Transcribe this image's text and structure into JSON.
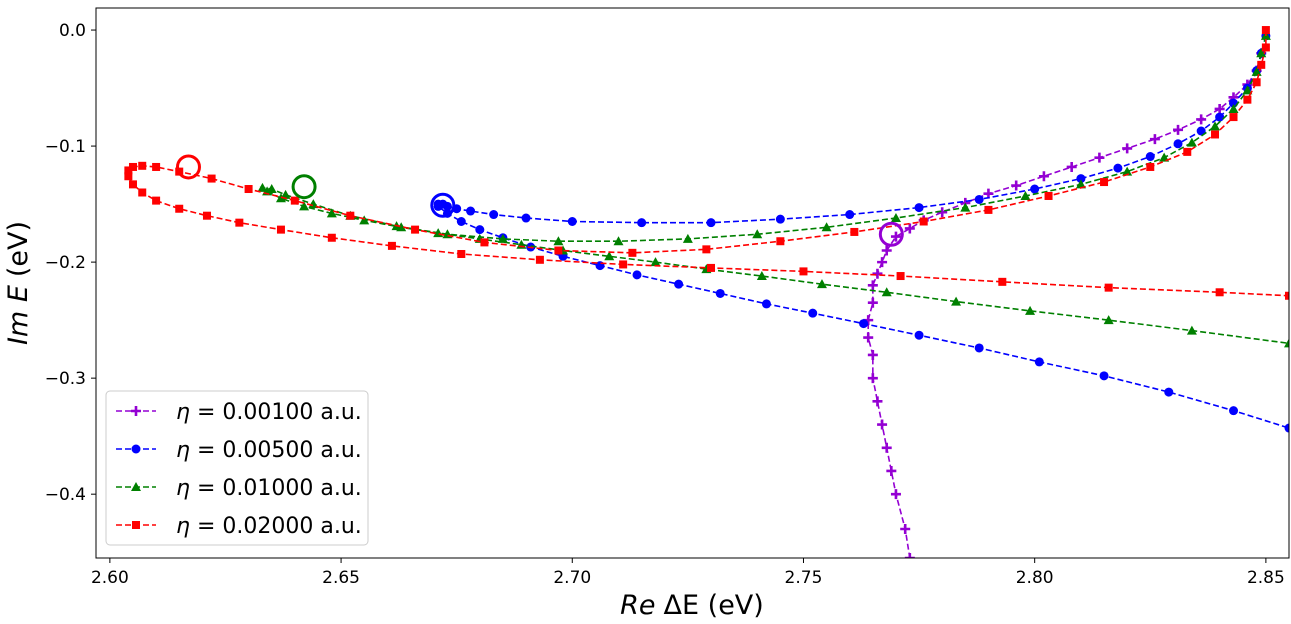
{
  "chart_data": {
    "type": "line",
    "xlabel": {
      "italic": "Re",
      "rest": "ΔE (eV)"
    },
    "ylabel": {
      "italic": "Im E",
      "rest": "(eV)"
    },
    "xlim": [
      2.597,
      2.855
    ],
    "ylim": [
      -0.455,
      0.019
    ],
    "xticks": [
      2.6,
      2.65,
      2.7,
      2.75,
      2.8,
      2.85
    ],
    "xtick_labels": [
      "2.60",
      "2.65",
      "2.70",
      "2.75",
      "2.80",
      "2.85"
    ],
    "yticks": [
      0.0,
      -0.1,
      -0.2,
      -0.3,
      -0.4
    ],
    "ytick_labels": [
      "0.0",
      "−0.1",
      "−0.2",
      "−0.3",
      "−0.4"
    ],
    "grid": false,
    "legend_position": "bottom-left",
    "series": [
      {
        "name": "η = 0.00100 a.u.",
        "label_prefix": "η",
        "label_value": " = 0.00100 a.u.",
        "color": "#9400d3",
        "marker": "plus",
        "x": [
          2.849,
          2.848,
          2.846,
          2.843,
          2.84,
          2.836,
          2.831,
          2.826,
          2.82,
          2.814,
          2.808,
          2.802,
          2.796,
          2.79,
          2.785,
          2.78,
          2.776,
          2.773,
          2.77,
          2.768,
          2.767,
          2.766,
          2.765,
          2.765,
          2.764,
          2.764,
          2.765,
          2.765,
          2.766,
          2.767,
          2.768,
          2.769,
          2.77,
          2.772,
          2.773
        ],
        "y": [
          -0.02,
          -0.035,
          -0.047,
          -0.058,
          -0.068,
          -0.077,
          -0.086,
          -0.094,
          -0.102,
          -0.11,
          -0.118,
          -0.126,
          -0.134,
          -0.141,
          -0.149,
          -0.157,
          -0.164,
          -0.171,
          -0.178,
          -0.19,
          -0.2,
          -0.21,
          -0.22,
          -0.235,
          -0.25,
          -0.265,
          -0.28,
          -0.3,
          -0.32,
          -0.34,
          -0.36,
          -0.38,
          -0.4,
          -0.43,
          -0.455
        ]
      },
      {
        "name": "η = 0.00500 a.u.",
        "label_prefix": "η",
        "label_value": " = 0.00500 a.u.",
        "color": "#0000ff",
        "marker": "circle",
        "x": [
          2.85,
          2.849,
          2.848,
          2.846,
          2.843,
          2.84,
          2.836,
          2.831,
          2.825,
          2.818,
          2.81,
          2.8,
          2.788,
          2.775,
          2.76,
          2.745,
          2.73,
          2.715,
          2.7,
          2.69,
          2.683,
          2.678,
          2.675,
          2.673,
          2.672,
          2.671,
          2.671,
          2.673,
          2.676,
          2.68,
          2.685,
          2.691,
          2.698,
          2.706,
          2.714,
          2.723,
          2.732,
          2.742,
          2.752,
          2.763,
          2.775,
          2.788,
          2.801,
          2.815,
          2.829,
          2.843,
          2.855
        ],
        "y": [
          -0.005,
          -0.02,
          -0.035,
          -0.05,
          -0.063,
          -0.075,
          -0.087,
          -0.098,
          -0.109,
          -0.119,
          -0.128,
          -0.137,
          -0.146,
          -0.153,
          -0.159,
          -0.163,
          -0.166,
          -0.166,
          -0.165,
          -0.162,
          -0.159,
          -0.156,
          -0.154,
          -0.152,
          -0.15,
          -0.15,
          -0.152,
          -0.158,
          -0.165,
          -0.172,
          -0.179,
          -0.187,
          -0.195,
          -0.203,
          -0.211,
          -0.219,
          -0.227,
          -0.236,
          -0.244,
          -0.253,
          -0.263,
          -0.274,
          -0.286,
          -0.298,
          -0.312,
          -0.328,
          -0.343
        ]
      },
      {
        "name": "η = 0.01000 a.u.",
        "label_prefix": "η",
        "label_value": " = 0.01000 a.u.",
        "color": "#008000",
        "marker": "triangle",
        "x": [
          2.85,
          2.849,
          2.848,
          2.846,
          2.843,
          2.839,
          2.834,
          2.828,
          2.82,
          2.81,
          2.798,
          2.785,
          2.77,
          2.755,
          2.74,
          2.725,
          2.71,
          2.697,
          2.685,
          2.673,
          2.662,
          2.652,
          2.644,
          2.638,
          2.635,
          2.633,
          2.634,
          2.637,
          2.642,
          2.648,
          2.655,
          2.663,
          2.671,
          2.68,
          2.689,
          2.698,
          2.708,
          2.718,
          2.729,
          2.741,
          2.754,
          2.768,
          2.783,
          2.799,
          2.816,
          2.834,
          2.855
        ],
        "y": [
          -0.005,
          -0.02,
          -0.036,
          -0.052,
          -0.068,
          -0.083,
          -0.097,
          -0.11,
          -0.122,
          -0.133,
          -0.143,
          -0.153,
          -0.162,
          -0.17,
          -0.176,
          -0.18,
          -0.182,
          -0.182,
          -0.18,
          -0.176,
          -0.169,
          -0.16,
          -0.15,
          -0.142,
          -0.137,
          -0.136,
          -0.139,
          -0.145,
          -0.152,
          -0.158,
          -0.164,
          -0.17,
          -0.175,
          -0.18,
          -0.185,
          -0.19,
          -0.195,
          -0.2,
          -0.206,
          -0.212,
          -0.219,
          -0.226,
          -0.234,
          -0.242,
          -0.25,
          -0.259,
          -0.27
        ]
      },
      {
        "name": "η = 0.02000 a.u.",
        "label_prefix": "η",
        "label_value": " = 0.02000 a.u.",
        "color": "#ff0000",
        "marker": "square",
        "x": [
          2.85,
          2.85,
          2.849,
          2.848,
          2.846,
          2.843,
          2.839,
          2.833,
          2.825,
          2.815,
          2.803,
          2.79,
          2.776,
          2.761,
          2.745,
          2.729,
          2.713,
          2.697,
          2.681,
          2.666,
          2.652,
          2.64,
          2.63,
          2.622,
          2.615,
          2.61,
          2.607,
          2.605,
          2.604,
          2.604,
          2.605,
          2.607,
          2.61,
          2.615,
          2.621,
          2.628,
          2.637,
          2.648,
          2.661,
          2.676,
          2.693,
          2.711,
          2.73,
          2.75,
          2.771,
          2.793,
          2.816,
          2.84,
          2.855
        ],
        "y": [
          0.0,
          -0.015,
          -0.03,
          -0.045,
          -0.06,
          -0.075,
          -0.09,
          -0.105,
          -0.118,
          -0.131,
          -0.143,
          -0.155,
          -0.165,
          -0.174,
          -0.182,
          -0.189,
          -0.192,
          -0.19,
          -0.183,
          -0.172,
          -0.16,
          -0.147,
          -0.137,
          -0.128,
          -0.122,
          -0.118,
          -0.117,
          -0.118,
          -0.121,
          -0.126,
          -0.133,
          -0.14,
          -0.147,
          -0.154,
          -0.16,
          -0.166,
          -0.172,
          -0.179,
          -0.186,
          -0.193,
          -0.198,
          -0.202,
          -0.205,
          -0.208,
          -0.212,
          -0.217,
          -0.222,
          -0.226,
          -0.229
        ]
      }
    ],
    "highlights": [
      {
        "series": "η = 0.00100 a.u.",
        "color": "#9400d3",
        "x": 2.769,
        "y": -0.176
      },
      {
        "series": "η = 0.00500 a.u.",
        "color": "#0000ff",
        "x": 2.672,
        "y": -0.151
      },
      {
        "series": "η = 0.01000 a.u.",
        "color": "#008000",
        "x": 2.642,
        "y": -0.135
      },
      {
        "series": "η = 0.02000 a.u.",
        "color": "#ff0000",
        "x": 2.617,
        "y": -0.118
      }
    ]
  }
}
